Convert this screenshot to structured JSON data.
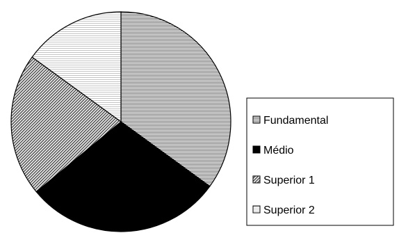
{
  "chart_data": {
    "type": "pie",
    "title": "",
    "categories": [
      "Fundamental",
      "Médio",
      "Superior 1",
      "Superior 2"
    ],
    "values": [
      35,
      29,
      21,
      15
    ],
    "unit": "",
    "legend_position": "right",
    "slice_fills": [
      "horizontal-lines",
      "solid-black",
      "diagonal-hatch",
      "light-horizontal-lines"
    ],
    "colors": {
      "stroke": "#000000",
      "background": "#ffffff"
    }
  }
}
